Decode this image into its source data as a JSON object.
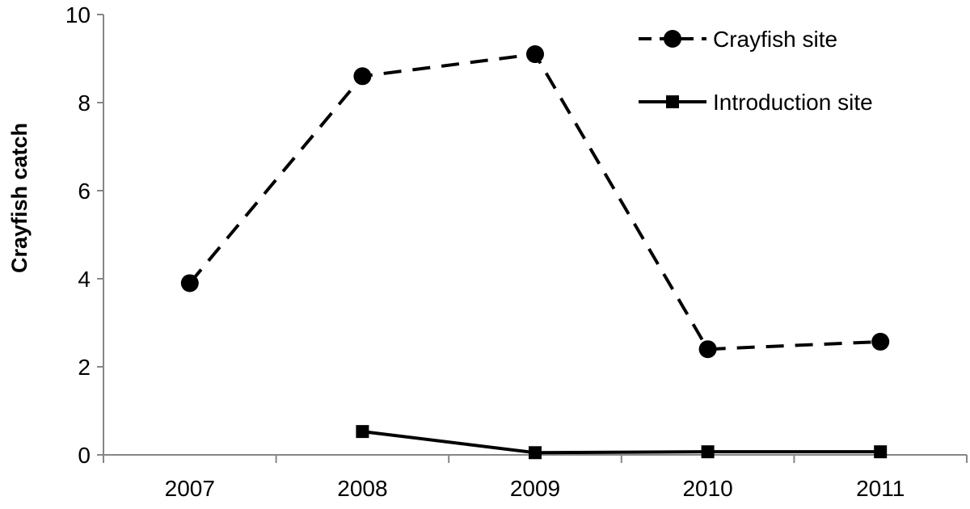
{
  "chart_data": {
    "type": "line",
    "categories": [
      "2007",
      "2008",
      "2009",
      "2010",
      "2011"
    ],
    "ylabel": "Crayfish catch",
    "ylim": [
      0,
      10
    ],
    "yticks": [
      "0",
      "2",
      "4",
      "6",
      "8",
      "10"
    ],
    "grid": false,
    "legend_position": "top-right",
    "series": [
      {
        "name": "Crayfish site",
        "values": [
          3.9,
          8.6,
          9.1,
          2.4,
          2.57
        ],
        "line_style": "dashed",
        "marker": "circle",
        "color": "#000000"
      },
      {
        "name": "Introduction site",
        "values": [
          null,
          0.53,
          0.05,
          0.07,
          0.07
        ],
        "line_style": "solid",
        "marker": "square",
        "color": "#000000"
      }
    ]
  }
}
